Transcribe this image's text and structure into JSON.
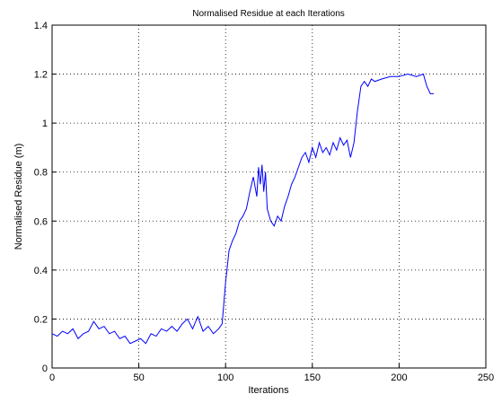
{
  "chart_data": {
    "type": "line",
    "title": "Normalised Residue at each Iterations",
    "x_label": "Iterations",
    "y_label": "Normalised Residue (m)",
    "x": [
      0,
      3,
      6,
      9,
      12,
      15,
      18,
      21,
      24,
      27,
      30,
      33,
      36,
      39,
      42,
      45,
      48,
      51,
      54,
      57,
      60,
      63,
      66,
      69,
      72,
      75,
      78,
      81,
      84,
      87,
      90,
      93,
      96,
      98,
      100,
      102,
      104,
      106,
      108,
      110,
      112,
      114,
      116,
      118,
      119,
      120,
      121,
      122,
      123,
      124,
      126,
      128,
      130,
      132,
      134,
      136,
      138,
      140,
      142,
      144,
      146,
      148,
      150,
      152,
      154,
      156,
      158,
      160,
      162,
      164,
      166,
      168,
      170,
      172,
      174,
      176,
      178,
      180,
      182,
      184,
      186,
      190,
      195,
      200,
      205,
      210,
      214,
      216,
      218,
      220
    ],
    "series": [
      {
        "name": "Normalised Residue",
        "color": "#0000ff",
        "values": [
          0.14,
          0.13,
          0.15,
          0.14,
          0.16,
          0.12,
          0.14,
          0.15,
          0.19,
          0.16,
          0.17,
          0.14,
          0.15,
          0.12,
          0.13,
          0.1,
          0.11,
          0.12,
          0.1,
          0.14,
          0.13,
          0.16,
          0.15,
          0.17,
          0.15,
          0.18,
          0.2,
          0.16,
          0.21,
          0.15,
          0.17,
          0.14,
          0.16,
          0.18,
          0.35,
          0.48,
          0.52,
          0.55,
          0.6,
          0.62,
          0.65,
          0.72,
          0.78,
          0.7,
          0.82,
          0.75,
          0.83,
          0.72,
          0.8,
          0.65,
          0.6,
          0.58,
          0.62,
          0.6,
          0.66,
          0.7,
          0.75,
          0.78,
          0.82,
          0.86,
          0.88,
          0.84,
          0.9,
          0.86,
          0.92,
          0.88,
          0.9,
          0.87,
          0.92,
          0.89,
          0.94,
          0.91,
          0.93,
          0.86,
          0.92,
          1.05,
          1.15,
          1.17,
          1.15,
          1.18,
          1.17,
          1.18,
          1.19,
          1.19,
          1.2,
          1.19,
          1.2,
          1.15,
          1.12,
          1.12
        ]
      }
    ],
    "xlim": [
      0,
      250
    ],
    "xticks": [
      0,
      50,
      100,
      150,
      200,
      250
    ],
    "ylim": [
      0,
      1.4
    ],
    "yticks": [
      0,
      0.2,
      0.4,
      0.6,
      0.8,
      1,
      1.2,
      1.4
    ],
    "grid": true
  }
}
